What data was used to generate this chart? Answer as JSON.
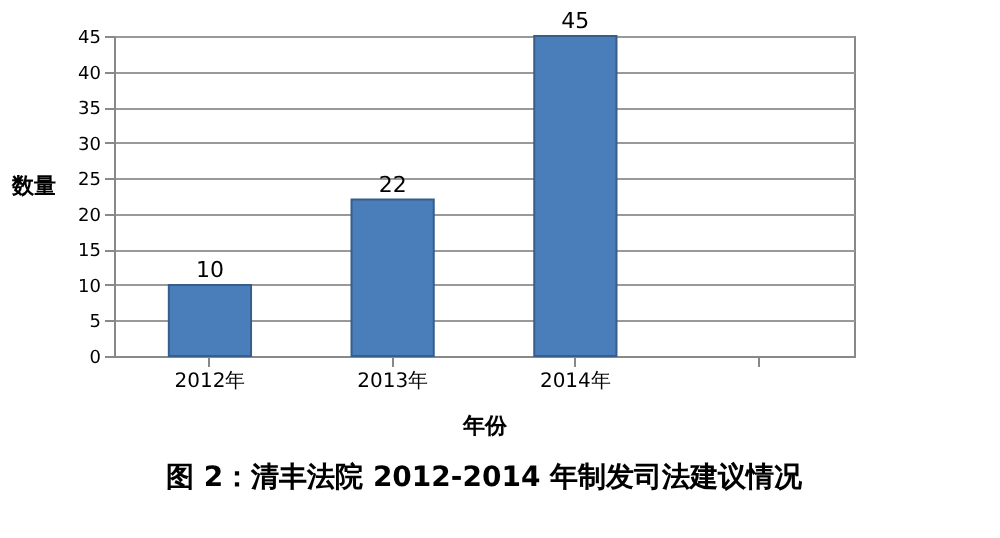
{
  "chart_data": {
    "type": "bar",
    "title": "图 2：清丰法院 2012-2014 年制发司法建议情况",
    "xlabel": "年份",
    "ylabel": "数量",
    "categories": [
      "2012年",
      "2013年",
      "2014年",
      null
    ],
    "values": [
      10,
      22,
      45,
      null
    ],
    "color": "#4a7ebb",
    "ylim": [
      0,
      45
    ],
    "yticks": [
      0,
      5,
      10,
      15,
      20,
      25,
      30,
      35,
      40,
      45
    ],
    "grid": "y",
    "data_labels": true
  }
}
